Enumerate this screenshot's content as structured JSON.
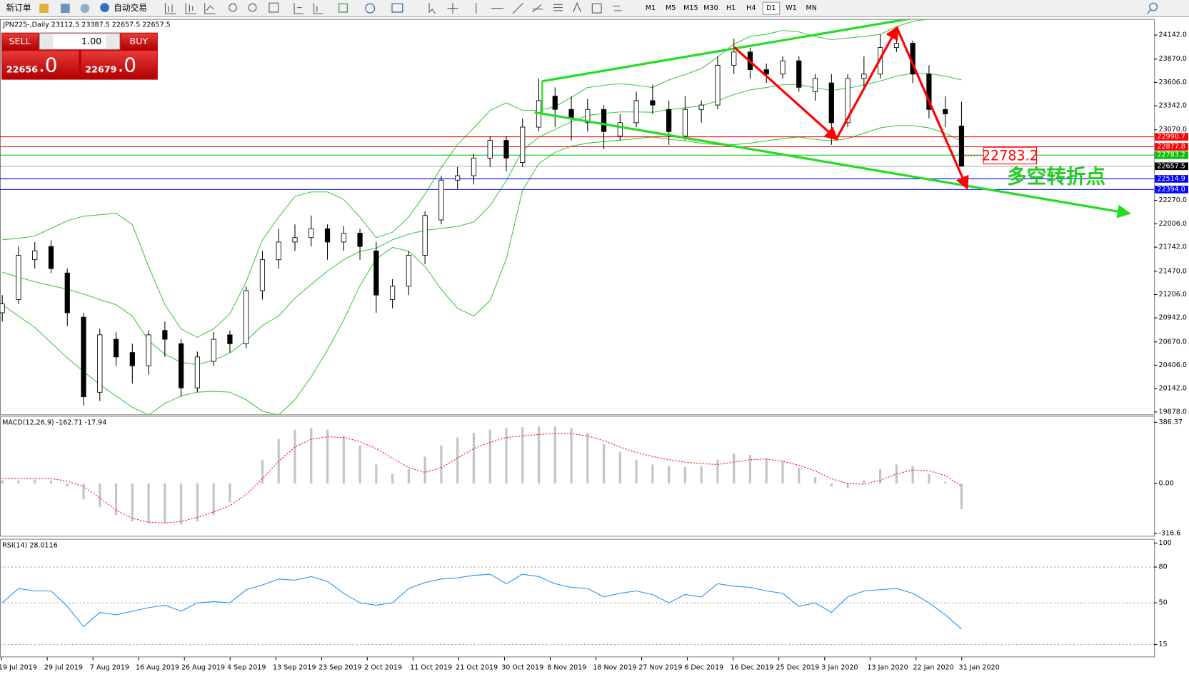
{
  "toolbar": {
    "buttons": [
      "新订单",
      "自动交易"
    ],
    "timeframes": [
      "M1",
      "M5",
      "M15",
      "M30",
      "H1",
      "H4",
      "D1",
      "W1",
      "MN"
    ]
  },
  "trade_panel": {
    "sell": "SELL",
    "buy": "BUY",
    "lot": "1.00",
    "bid_main": "22656",
    "bid_frac": ".0",
    "ask_main": "22679",
    "ask_frac": ".0"
  },
  "main_chart": {
    "header": "JPN225-,Daily  23112.5 23387.5 22657.5 22657.5",
    "ylim": [
      19850,
      24315
    ],
    "yticks": [
      {
        "value": 24142,
        "label": "24142.0"
      },
      {
        "value": 23870,
        "label": "23870.0"
      },
      {
        "value": 23606,
        "label": "23606.0"
      },
      {
        "value": 23342,
        "label": "23342.0"
      },
      {
        "value": 23070,
        "label": "23070.0"
      },
      {
        "value": 22270,
        "label": "22270.0"
      },
      {
        "value": 22006,
        "label": "22006.0"
      },
      {
        "value": 21742,
        "label": "21742.0"
      },
      {
        "value": 21470,
        "label": "21470.0"
      },
      {
        "value": 21206,
        "label": "21206.0"
      },
      {
        "value": 20942,
        "label": "20942.0"
      },
      {
        "value": 20670,
        "label": "20670.0"
      },
      {
        "value": 20406,
        "label": "20406.0"
      },
      {
        "value": 20142,
        "label": "20142.0"
      },
      {
        "value": 19878,
        "label": "19878.0"
      }
    ],
    "open": [
      21000,
      21150,
      21600,
      21750,
      21450,
      20950,
      20100,
      20700,
      20550,
      20400,
      20800,
      20650,
      20150,
      20450,
      20750,
      20650,
      21250,
      21600,
      21800,
      21850,
      21950,
      21800,
      21900,
      21700,
      21150,
      21300,
      21650,
      22050,
      22500,
      22550,
      22750,
      22950,
      22700,
      23100,
      23450,
      23300,
      23150,
      23300,
      23000,
      23150,
      23400,
      23300,
      23000,
      23300,
      23350,
      23800,
      23950,
      23750,
      23700,
      23850,
      23500,
      23600,
      23150,
      23650,
      23700,
      24000,
      24050,
      23700,
      23300,
      23112.5
    ],
    "high": [
      21200,
      21750,
      21800,
      21820,
      21500,
      21000,
      20820,
      20780,
      20650,
      20800,
      20900,
      20700,
      20560,
      20780,
      20800,
      21300,
      21700,
      21950,
      22000,
      22100,
      22000,
      21980,
      21950,
      21800,
      21380,
      21700,
      22150,
      22550,
      22650,
      22800,
      23000,
      23000,
      23200,
      23650,
      23550,
      23450,
      23420,
      23350,
      23250,
      23500,
      23580,
      23400,
      23450,
      23400,
      23900,
      24100,
      24000,
      23820,
      23900,
      23900,
      23700,
      23700,
      23700,
      23900,
      24150,
      24180,
      24080,
      23800,
      23450,
      23387.5
    ],
    "low": [
      20900,
      21100,
      21500,
      21450,
      20850,
      19950,
      20000,
      20400,
      20200,
      20300,
      20500,
      20050,
      20100,
      20400,
      20550,
      20600,
      21150,
      21500,
      21700,
      21750,
      21600,
      21700,
      21600,
      21000,
      21050,
      21200,
      21550,
      22000,
      22400,
      22450,
      22650,
      22600,
      22650,
      23050,
      23100,
      22950,
      23050,
      22850,
      22950,
      23100,
      23250,
      22900,
      22950,
      23150,
      23300,
      23700,
      23650,
      23600,
      23650,
      23500,
      23400,
      22900,
      23100,
      23550,
      23650,
      23950,
      23600,
      23200,
      23100,
      22657.5
    ],
    "close": [
      21100,
      21650,
      21700,
      21500,
      21000,
      20050,
      20750,
      20500,
      20400,
      20750,
      20700,
      20150,
      20500,
      20700,
      20650,
      21250,
      21600,
      21800,
      21850,
      21950,
      21800,
      21900,
      21750,
      21200,
      21300,
      21650,
      22100,
      22500,
      22550,
      22750,
      22950,
      22750,
      23100,
      23400,
      23300,
      23200,
      23300,
      23050,
      23150,
      23400,
      23350,
      23050,
      23300,
      23350,
      23800,
      23950,
      23750,
      23700,
      23850,
      23550,
      23650,
      23150,
      23650,
      23700,
      24000,
      24050,
      23700,
      23300,
      23250,
      22657.5
    ],
    "bands": {
      "color": "#3cc83c",
      "upper": [
        21825,
        21842,
        21868,
        21954,
        22040,
        22092,
        22109,
        22126,
        21997,
        21523,
        21093,
        20817,
        20722,
        20817,
        20989,
        21351,
        21825,
        22083,
        22316,
        22367,
        22367,
        22281,
        22083,
        21851,
        21911,
        22083,
        22342,
        22643,
        22902,
        23091,
        23289,
        23375,
        23289,
        23289,
        23332,
        23436,
        23548,
        23574,
        23591,
        23574,
        23548,
        23634,
        23694,
        23763,
        23892,
        24039,
        24125,
        24151,
        24194,
        24177,
        24125,
        24090,
        24108,
        24125,
        24151,
        24237,
        24297,
        24323,
        24323,
        24323
      ],
      "middle": [
        21459,
        21402,
        21351,
        21308,
        21265,
        21213,
        21148,
        21092,
        20963,
        20683,
        20533,
        20438,
        20412,
        20463,
        20545,
        20683,
        20856,
        20963,
        21166,
        21320,
        21471,
        21600,
        21695,
        21730,
        21825,
        21889,
        21932,
        21954,
        21976,
        22027,
        22212,
        22492,
        22837,
        22987,
        23073,
        23160,
        23233,
        23255,
        23272,
        23272,
        23268,
        23298,
        23319,
        23341,
        23397,
        23470,
        23522,
        23548,
        23582,
        23582,
        23543,
        23517,
        23539,
        23578,
        23621,
        23677,
        23707,
        23707,
        23677,
        23634
      ],
      "lower": [
        21093,
        20963,
        20834,
        20662,
        20490,
        20335,
        20188,
        20059,
        19930,
        19844,
        19973,
        20059,
        20102,
        20110,
        20102,
        20016,
        19887,
        19844,
        20016,
        20274,
        20576,
        20920,
        21308,
        21609,
        21739,
        21696,
        21523,
        21265,
        21050,
        20963,
        21136,
        21609,
        22385,
        22686,
        22815,
        22884,
        22919,
        22936,
        22953,
        22970,
        22988,
        22962,
        22945,
        22919,
        22902,
        22902,
        22919,
        22945,
        22970,
        22988,
        22962,
        22945,
        22970,
        23031,
        23091,
        23117,
        23117,
        23091,
        23031,
        22945
      ]
    },
    "price_lines": [
      {
        "value": 22990.7,
        "label": "22990.7",
        "color": "#ff0000"
      },
      {
        "value": 22877.8,
        "label": "22877.8",
        "color": "#ff0000"
      },
      {
        "value": 22783.2,
        "label": "22783.2",
        "color": "#00c000"
      },
      {
        "value": 22657.5,
        "label": "22657.5",
        "color": "#000000"
      },
      {
        "value": 22514.9,
        "label": "22514.9",
        "color": "#0000ff"
      },
      {
        "value": 22394.0,
        "label": "22394.0",
        "color": "#0000ff"
      }
    ],
    "annotation": {
      "price": "22783.2",
      "text": "多空转折点"
    }
  },
  "macd": {
    "label": "MACD(12,26,9) -162.71 -17.94",
    "ylim": [
      -331,
      422
    ],
    "yticks": [
      386.37,
      {
        "value": 0,
        "label": "0.00"
      },
      -316.6
    ],
    "histogram": [
      20,
      20,
      25,
      20,
      -20,
      -100,
      -150,
      -200,
      -240,
      -250,
      -250,
      -260,
      -240,
      -200,
      -120,
      0,
      150,
      280,
      340,
      350,
      340,
      300,
      240,
      120,
      60,
      90,
      170,
      240,
      290,
      320,
      340,
      350,
      355,
      360,
      360,
      350,
      320,
      250,
      200,
      150,
      120,
      110,
      105,
      110,
      150,
      190,
      180,
      160,
      140,
      100,
      40,
      -20,
      -30,
      20,
      90,
      120,
      110,
      60,
      10,
      -162.71
    ],
    "signal": [
      30,
      30,
      30,
      30,
      15,
      -20,
      -90,
      -170,
      -220,
      -245,
      -250,
      -240,
      -215,
      -180,
      -140,
      -70,
      30,
      140,
      230,
      280,
      295,
      290,
      265,
      220,
      160,
      100,
      70,
      100,
      160,
      220,
      260,
      290,
      300,
      310,
      315,
      315,
      300,
      270,
      230,
      195,
      170,
      150,
      135,
      125,
      120,
      135,
      150,
      155,
      140,
      115,
      80,
      30,
      0,
      -5,
      20,
      60,
      85,
      80,
      50,
      -17.94
    ]
  },
  "rsi": {
    "label": "RSI(14) 28.0116",
    "ylim": [
      5,
      103
    ],
    "yticks": [
      100,
      80,
      50,
      15
    ],
    "levels": [
      80,
      50,
      15
    ],
    "color": "#1e90ff",
    "values": [
      50,
      62,
      60,
      60,
      47,
      30,
      42,
      40,
      43,
      46,
      48,
      43,
      50,
      51,
      50,
      61,
      65,
      70,
      69,
      72,
      68,
      58,
      50,
      48,
      50,
      62,
      67,
      70,
      71,
      73,
      74,
      66,
      74,
      72,
      66,
      63,
      62,
      55,
      58,
      60,
      57,
      50,
      57,
      55,
      66,
      64,
      63,
      60,
      58,
      47,
      50,
      42,
      55,
      60,
      61,
      62,
      58,
      50,
      40,
      28.0116
    ]
  },
  "dates": [
    "19 Jul 2019",
    "29 Jul 2019",
    "7 Aug 2019",
    "16 Aug 2019",
    "26 Aug 2019",
    "4 Sep 2019",
    "13 Sep 2019",
    "23 Sep 2019",
    "2 Oct 2019",
    "11 Oct 2019",
    "21 Oct 2019",
    "30 Oct 2019",
    "8 Nov 2019",
    "18 Nov 2019",
    "27 Nov 2019",
    "6 Dec 2019",
    "16 Dec 2019",
    "25 Dec 2019",
    "3 Jan 2020",
    "13 Jan 2020",
    "22 Jan 2020",
    "31 Jan 2020"
  ]
}
